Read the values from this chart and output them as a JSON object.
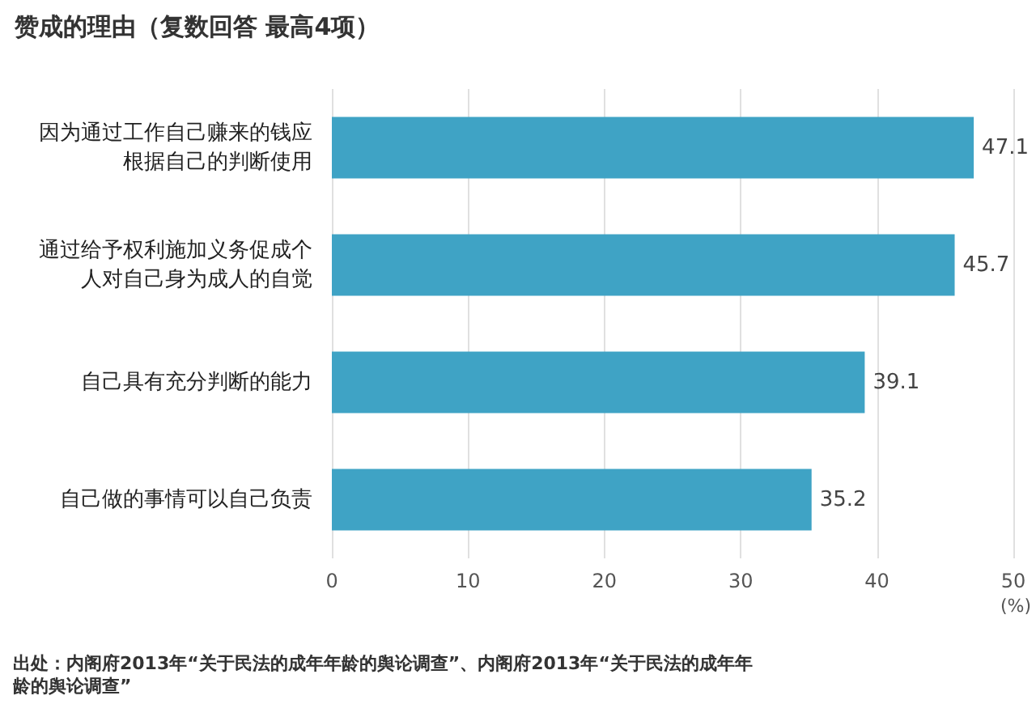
{
  "chart_data": {
    "type": "bar",
    "orientation": "horizontal",
    "title": "赞成的理由（复数回答 最高4项）",
    "categories": [
      "因为通过工作自己赚来的钱应根据自己的判断使用",
      "通过给予权利施加义务促成个人对自己身为成人的自觉",
      "自己具有充分判断的能力",
      "自己做的事情可以自己负责"
    ],
    "values": [
      47.1,
      45.7,
      39.1,
      35.2
    ],
    "color": "#3fa3c5",
    "xlim": [
      0,
      50
    ],
    "xticks": [
      0,
      10,
      20,
      30,
      40,
      50
    ],
    "xlabel": "(%)",
    "grid": "x",
    "data_labels": true,
    "annotations": [
      "出处：内阁府2013年“关于民法的成年年龄的舆论调查”、内阁府2013年“关于民法的成年年龄的舆论调查”"
    ]
  }
}
